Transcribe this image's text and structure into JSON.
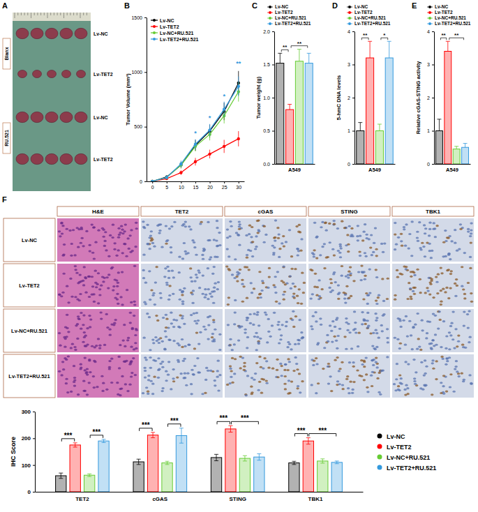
{
  "panel_a": {
    "label": "A",
    "groups": [
      "Blanx",
      "RU.521"
    ],
    "rows": [
      "Lv-NC",
      "Lv-TET2",
      "Lv-NC",
      "Lv-TET2"
    ]
  },
  "chart_data": [
    {
      "type": "line",
      "panel_label": "B",
      "y_label": "Tumor Volume (mm³)",
      "x": [
        0,
        5,
        10,
        15,
        20,
        25,
        30
      ],
      "xlim": [
        -2,
        32
      ],
      "xticks": [
        0,
        5,
        10,
        15,
        20,
        25,
        30
      ],
      "ylim": [
        0,
        1500
      ],
      "yticks": [
        0,
        500,
        1000,
        1500
      ],
      "legend": "upper left",
      "marker": "circle",
      "series": [
        {
          "name": "Lv-NC",
          "color": "#000000",
          "values": [
            0,
            40,
            150,
            330,
            460,
            640,
            900
          ],
          "errors": [
            0,
            15,
            30,
            50,
            60,
            80,
            110
          ]
        },
        {
          "name": "Lv-TET2",
          "color": "#ff0000",
          "values": [
            0,
            25,
            80,
            180,
            250,
            320,
            390
          ],
          "errors": [
            0,
            10,
            20,
            35,
            40,
            60,
            70
          ]
        },
        {
          "name": "Lv-NC+RU.521",
          "color": "#66cc33",
          "values": [
            0,
            35,
            150,
            320,
            430,
            600,
            820
          ],
          "errors": [
            0,
            15,
            30,
            45,
            55,
            70,
            90
          ]
        },
        {
          "name": "Lv-TET2+RU.521",
          "color": "#3399dd",
          "values": [
            0,
            35,
            160,
            340,
            470,
            660,
            870
          ],
          "errors": [
            0,
            15,
            30,
            45,
            55,
            70,
            90
          ]
        }
      ],
      "annotations": [
        {
          "text": "*",
          "x": 15,
          "y": 420
        },
        {
          "text": "*",
          "x": 20,
          "y": 560
        },
        {
          "text": "*",
          "x": 25,
          "y": 760
        },
        {
          "text": "**",
          "x": 30,
          "y": 1060
        }
      ]
    },
    {
      "type": "bar",
      "panel_label": "C",
      "y_label": "Tumor weight (g)",
      "x_label": "A549",
      "categories": [
        "Lv-NC",
        "Lv-TET2",
        "Lv-NC+RU.521",
        "Lv-TET2+RU.521"
      ],
      "values": [
        1.52,
        0.82,
        1.55,
        1.52
      ],
      "errors": [
        0.15,
        0.08,
        0.18,
        0.15
      ],
      "colors": [
        "#000000",
        "#ff0000",
        "#66cc33",
        "#3399dd"
      ],
      "ylim": [
        0,
        2
      ],
      "yticks": [
        {
          "value": 0,
          "label": "0.0"
        },
        {
          "value": 0.5,
          "label": "0.5"
        },
        {
          "value": 1,
          "label": "1.0"
        },
        {
          "value": 1.5,
          "label": "1.5"
        },
        {
          "value": 2,
          "label": "2.0"
        }
      ],
      "legend": "upper left",
      "tick_labels": "y",
      "significance": [
        {
          "text": "**",
          "from": 0,
          "to": 1
        },
        {
          "text": "**",
          "from": 1,
          "to": 3
        }
      ]
    },
    {
      "type": "bar",
      "panel_label": "D",
      "y_label": "5-hmC DNA levels",
      "x_label": "A549",
      "categories": [
        "Lv-NC",
        "Lv-TET2",
        "Lv-NC+RU.521",
        "Lv-TET2+RU.521"
      ],
      "values": [
        1.0,
        3.2,
        1.0,
        3.2
      ],
      "errors": [
        0.25,
        0.5,
        0.2,
        0.5
      ],
      "colors": [
        "#000000",
        "#ff0000",
        "#66cc33",
        "#3399dd"
      ],
      "ylim": [
        0,
        4
      ],
      "yticks": [
        0,
        1,
        2,
        3,
        4
      ],
      "legend": "upper left",
      "tick_labels": "y",
      "significance": [
        {
          "text": "**",
          "from": 0,
          "to": 1
        },
        {
          "text": "*",
          "from": 2,
          "to": 3
        }
      ]
    },
    {
      "type": "bar",
      "panel_label": "E",
      "y_label": "Relative cGAS-STING activity",
      "x_label": "A549",
      "categories": [
        "Lv-NC",
        "Lv-TET2",
        "Lv-NC+RU.521",
        "Lv-TET2+RU.521"
      ],
      "values": [
        1.0,
        3.4,
        0.45,
        0.5
      ],
      "errors": [
        0.35,
        0.3,
        0.08,
        0.12
      ],
      "colors": [
        "#000000",
        "#ff0000",
        "#66cc33",
        "#3399dd"
      ],
      "ylim": [
        0,
        4
      ],
      "yticks": [
        0,
        1,
        2,
        3,
        4
      ],
      "legend": "upper left",
      "tick_labels": "y",
      "significance": [
        {
          "text": "**",
          "from": 0,
          "to": 1
        },
        {
          "text": "**",
          "from": 1,
          "to": 3
        }
      ]
    },
    {
      "type": "grouped_bar",
      "y_label": "IHC Score",
      "categories": [
        "TET2",
        "cGAS",
        "STING",
        "TBK1"
      ],
      "ylim": [
        0,
        300
      ],
      "yticks": [
        0,
        100,
        200,
        300
      ],
      "legend": "right",
      "series": [
        {
          "name": "Lv-NC",
          "color": "#000000",
          "values": [
            60,
            112,
            128,
            108
          ],
          "errors": [
            10,
            10,
            12,
            6
          ]
        },
        {
          "name": "Lv-TET2",
          "color": "#ff0000",
          "values": [
            175,
            212,
            235,
            190
          ],
          "errors": [
            8,
            10,
            12,
            12
          ]
        },
        {
          "name": "Lv-NC+RU.521",
          "color": "#66cc33",
          "values": [
            62,
            108,
            125,
            115
          ],
          "errors": [
            5,
            6,
            10,
            8
          ]
        },
        {
          "name": "Lv-TET2+RU.521",
          "color": "#3399dd",
          "values": [
            190,
            210,
            130,
            110
          ],
          "errors": [
            6,
            28,
            12,
            5
          ]
        }
      ],
      "significance": [
        {
          "text": "***",
          "category": 0,
          "from": 0,
          "to": 1
        },
        {
          "text": "***",
          "category": 0,
          "from": 2,
          "to": 3
        },
        {
          "text": "***",
          "category": 1,
          "from": 0,
          "to": 1
        },
        {
          "text": "***",
          "category": 1,
          "from": 2,
          "to": 3
        },
        {
          "text": "***",
          "category": 2,
          "from": 0,
          "to": 1
        },
        {
          "text": "***",
          "category": 2,
          "from": 1,
          "to": 3
        },
        {
          "text": "***",
          "category": 3,
          "from": 0,
          "to": 1
        },
        {
          "text": "***",
          "category": 3,
          "from": 1,
          "to": 3
        }
      ]
    }
  ],
  "panel_f": {
    "label": "F",
    "columns": [
      "H&E",
      "TET2",
      "cGAS",
      "STING",
      "TBK1"
    ],
    "rows": [
      "Lv-NC",
      "Lv-TET2",
      "Lv-NC+RU.521",
      "Lv-TET2+RU.521"
    ]
  }
}
